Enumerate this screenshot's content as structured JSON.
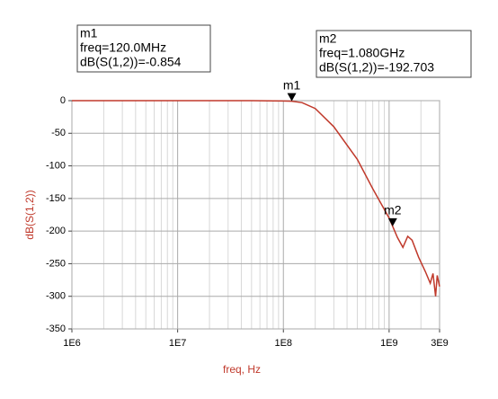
{
  "chart_data": {
    "type": "line",
    "x_label": "freq, Hz",
    "y_label": "dB(S(1,2))",
    "log_x": true,
    "grid": true,
    "xlim": [
      1000000,
      3000000000
    ],
    "ylim": [
      -350,
      0
    ],
    "xticks": [
      {
        "value": 1000000,
        "label": "1E6"
      },
      {
        "value": 10000000,
        "label": "1E7"
      },
      {
        "value": 100000000,
        "label": "1E8"
      },
      {
        "value": 1000000000,
        "label": "1E9"
      },
      {
        "value": 3000000000,
        "label": "3E9"
      }
    ],
    "yticks": [
      -350,
      -300,
      -250,
      -200,
      -150,
      -100,
      -50,
      0
    ],
    "series": [
      {
        "name": "dB(S(1,2))",
        "color": "#c0392b",
        "x": [
          1000000,
          10000000,
          50000000,
          100000000,
          120000000,
          150000000,
          200000000,
          300000000,
          500000000,
          700000000,
          1000000000,
          1080000000,
          1200000000,
          1350000000,
          1500000000,
          1650000000,
          1900000000,
          2200000000,
          2450000000,
          2600000000,
          2750000000,
          2850000000,
          3000000000
        ],
        "values": [
          0,
          0,
          0,
          -0.5,
          -0.854,
          -3,
          -12,
          -40,
          -90,
          -135,
          -180,
          -192.703,
          -210,
          -225,
          -208,
          -214,
          -240,
          -262,
          -280,
          -265,
          -300,
          -268,
          -285
        ]
      }
    ],
    "markers": [
      {
        "name": "m1",
        "x": 120000000,
        "y": -0.854,
        "lines": [
          "freq=120.0MHz",
          "dB(S(1,2))=-0.854"
        ]
      },
      {
        "name": "m2",
        "x": 1080000000,
        "y": -192.703,
        "lines": [
          "freq=1.080GHz",
          "dB(S(1,2))=-192.703"
        ]
      }
    ]
  }
}
